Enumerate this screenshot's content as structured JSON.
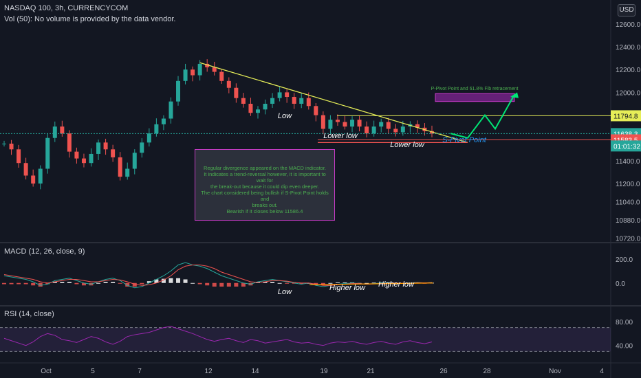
{
  "header": {
    "symbol_line": "NASDAQ 100, 3h, CURRENCYCOM",
    "volume_line": "Vol (50): No volume is provided by the data vendor.",
    "currency_button": "USD",
    "macd_title": "MACD (12, 26, close, 9)",
    "rsi_title": "RSI (14, close)"
  },
  "annotation_box": {
    "lines": [
      "Regular divergence appeared on the MACD indicator.",
      "It indicates a trend-reversal however, it is important to wait for",
      "the break-out because it could dip even deeper.",
      "The chart considered being bullish if S-Pivot Point holds and",
      "breaks out.",
      "Bearish if it closes below 11586.4"
    ]
  },
  "chart_data": [
    {
      "type": "candlestick",
      "title": "NASDAQ 100, 3h, CURRENCYCOM",
      "x_tick_labels": [
        "Oct",
        "5",
        "7",
        "12",
        "14",
        "19",
        "21",
        "26",
        "28",
        "Nov",
        "4"
      ],
      "y_tick_labels": [
        "12600.0",
        "12400.0",
        "12200.0",
        "12000.0",
        "11400.0",
        "11200.0",
        "11040.0",
        "10880.0",
        "10720.0"
      ],
      "ylim": [
        10700,
        12750
      ],
      "path_points": [
        [
          1,
          11550
        ],
        [
          2,
          11500
        ],
        [
          3,
          11380
        ],
        [
          4,
          11270
        ],
        [
          5,
          11200
        ],
        [
          6,
          11330
        ],
        [
          7,
          11600
        ],
        [
          8,
          11700
        ],
        [
          9,
          11640
        ],
        [
          10,
          11480
        ],
        [
          11,
          11420
        ],
        [
          12,
          11380
        ],
        [
          13,
          11460
        ],
        [
          14,
          11560
        ],
        [
          15,
          11500
        ],
        [
          16,
          11430
        ],
        [
          17,
          11260
        ],
        [
          18,
          11330
        ],
        [
          19,
          11470
        ],
        [
          20,
          11560
        ],
        [
          21,
          11640
        ],
        [
          22,
          11720
        ],
        [
          23,
          11770
        ],
        [
          24,
          11920
        ],
        [
          25,
          12100
        ],
        [
          26,
          12200
        ],
        [
          27,
          12150
        ],
        [
          28,
          12250
        ],
        [
          29,
          12220
        ],
        [
          30,
          12180
        ],
        [
          31,
          12100
        ],
        [
          32,
          12040
        ],
        [
          33,
          11950
        ],
        [
          34,
          11900
        ],
        [
          35,
          11820
        ],
        [
          36,
          11850
        ],
        [
          37,
          11900
        ],
        [
          38,
          11950
        ],
        [
          39,
          12000
        ],
        [
          40,
          11960
        ],
        [
          41,
          11900
        ],
        [
          42,
          11950
        ],
        [
          43,
          11880
        ],
        [
          44,
          11800
        ],
        [
          45,
          11680
        ],
        [
          46,
          11760
        ],
        [
          47,
          11740
        ],
        [
          48,
          11700
        ],
        [
          49,
          11760
        ],
        [
          50,
          11700
        ],
        [
          51,
          11640
        ],
        [
          52,
          11700
        ],
        [
          53,
          11740
        ],
        [
          54,
          11680
        ],
        [
          55,
          11650
        ],
        [
          56,
          11700
        ],
        [
          57,
          11720
        ],
        [
          58,
          11690
        ],
        [
          59,
          11660
        ],
        [
          60,
          11638
        ]
      ],
      "horizontal_levels": [
        {
          "label": "11794.8",
          "value": 11794.8,
          "color": "#e6ee58"
        },
        {
          "label": "11638.3",
          "value": 11638.3,
          "color": "#26a69a"
        },
        {
          "label": "11583.5",
          "value": 11583.5,
          "color": "#ef5350"
        }
      ],
      "countdown_label": "01:01:32",
      "text_annotations": [
        "Low",
        "Lower low",
        "Lower low",
        "S-Pivot Point",
        "P-Pivot Point and 61.8% Fib retracement"
      ],
      "colors": {
        "up": "#26a69a",
        "down": "#ef5350",
        "trendline": "#e6ee58",
        "projection": "#00e676",
        "pivot_zone": "#9c27b0"
      }
    },
    {
      "type": "bar",
      "title": "MACD (12, 26, close, 9)",
      "y_tick_labels": [
        "200.0",
        "0.0"
      ],
      "ylim": [
        -150,
        250
      ],
      "series": [
        {
          "name": "MACD",
          "values": [
            60,
            50,
            40,
            30,
            10,
            -20,
            -10,
            20,
            30,
            40,
            20,
            0,
            -10,
            10,
            30,
            40,
            20,
            -20,
            -40,
            -30,
            0,
            30,
            60,
            100,
            150,
            170,
            150,
            140,
            120,
            90,
            60,
            40,
            20,
            0,
            -10,
            10,
            20,
            30,
            20,
            10,
            0,
            -10,
            0,
            -20,
            -30,
            -20,
            -10,
            -5,
            0,
            -5,
            -10,
            -5,
            0,
            5,
            0,
            -5,
            0,
            5,
            0,
            5
          ]
        },
        {
          "name": "Signal",
          "values": [
            70,
            60,
            50,
            40,
            30,
            10,
            0,
            10,
            20,
            30,
            30,
            20,
            10,
            10,
            20,
            30,
            25,
            10,
            -10,
            -20,
            -15,
            0,
            25,
            60,
            110,
            140,
            150,
            150,
            140,
            120,
            90,
            70,
            50,
            30,
            10,
            5,
            10,
            20,
            20,
            15,
            5,
            0,
            0,
            -10,
            -20,
            -20,
            -15,
            -10,
            -5,
            -5,
            -10,
            -8,
            -5,
            0,
            0,
            -3,
            -2,
            2,
            1,
            3
          ]
        }
      ],
      "text_annotations": [
        "Low",
        "Higher low",
        "Higher low"
      ]
    },
    {
      "type": "line",
      "title": "RSI (14, close)",
      "y_tick_labels": [
        "80.00",
        "40.00"
      ],
      "ylim": [
        20,
        95
      ],
      "values": [
        52,
        48,
        44,
        40,
        46,
        55,
        60,
        57,
        50,
        48,
        45,
        50,
        55,
        52,
        46,
        42,
        47,
        55,
        58,
        60,
        62,
        66,
        70,
        72,
        68,
        64,
        60,
        55,
        50,
        47,
        50,
        52,
        48,
        45,
        50,
        48,
        44,
        46,
        48,
        50,
        46,
        44,
        45,
        42,
        40,
        44,
        46,
        45,
        47,
        44,
        42,
        45,
        47,
        44,
        42,
        46,
        48,
        45,
        43,
        46
      ]
    }
  ]
}
